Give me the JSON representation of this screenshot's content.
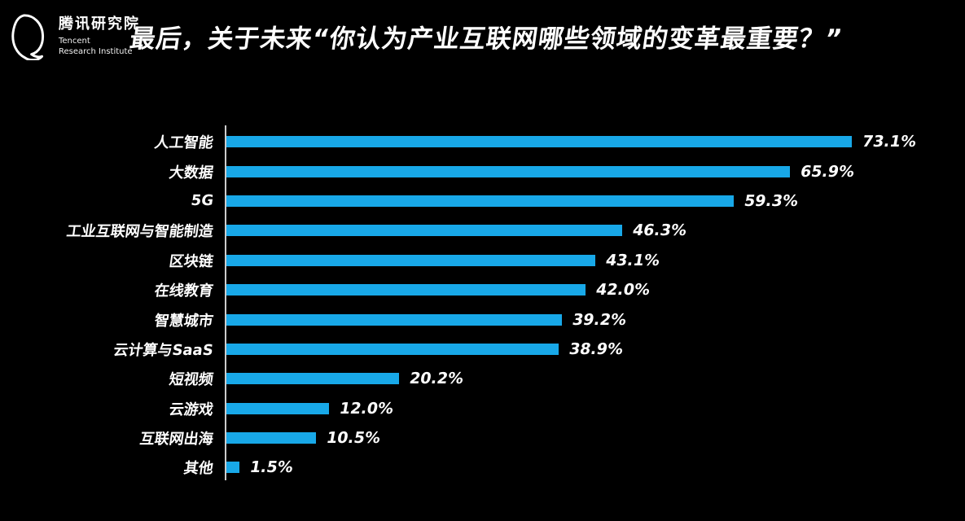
{
  "brand": {
    "logo_icon": "tencent-penguin-outline-icon",
    "name_cn": "腾讯研究院",
    "name_en_line1": "Tencent",
    "name_en_line2": "Research Institute"
  },
  "header": {
    "title": "最后，关于未来“你认为产业互联网哪些领域的变革最重要？”"
  },
  "chart_data": {
    "type": "bar",
    "orientation": "horizontal",
    "title": "最后，关于未来“你认为产业互联网哪些领域的变革最重要？”",
    "categories": [
      "人工智能",
      "大数据",
      "5G",
      "工业互联网与智能制造",
      "区块链",
      "在线教育",
      "智慧城市",
      "云计算与SaaS",
      "短视频",
      "云游戏",
      "互联网出海",
      "其他"
    ],
    "values": [
      73.1,
      65.9,
      59.3,
      46.3,
      43.1,
      42.0,
      39.2,
      38.9,
      20.2,
      12.0,
      10.5,
      1.5
    ],
    "value_labels": [
      "73.1%",
      "65.9%",
      "59.3%",
      "46.3%",
      "43.1%",
      "42.0%",
      "39.2%",
      "38.9%",
      "20.2%",
      "12.0%",
      "10.5%",
      "1.5%"
    ],
    "xlim": [
      0,
      80
    ],
    "grid": false,
    "legend": false,
    "bar_color": "#18a8e8",
    "axis_line_color": "#cccccc",
    "background_color": "#000000",
    "text_color": "#ffffff"
  }
}
